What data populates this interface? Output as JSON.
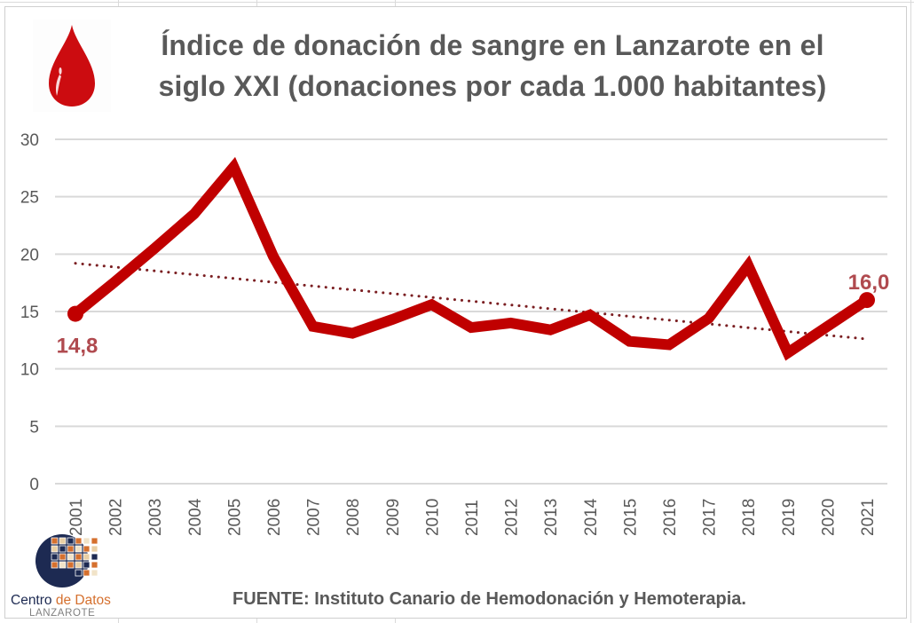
{
  "header": {
    "title": "Índice de donación de sangre en Lanzarote en el siglo XXI (donaciones por cada 1.000 habitantes)",
    "icon": "blood-drop-icon"
  },
  "footer": {
    "source": "FUENTE: Instituto Canario de Hemodonación y Hemoterapia.",
    "logo_name": "Centro",
    "logo_name_accent": "de Datos",
    "logo_subtitle": "LANZAROTE"
  },
  "colors": {
    "line": "#c00000",
    "trend": "#7b1f22",
    "label": "#b04a4f",
    "grid": "#d9d9d9",
    "text": "#595959"
  },
  "chart_data": {
    "type": "line",
    "title": "Índice de donación de sangre en Lanzarote en el siglo XXI (donaciones por cada 1.000 habitantes)",
    "xlabel": "",
    "ylabel": "",
    "ylim": [
      0,
      30
    ],
    "yticks": [
      "0",
      "5",
      "10",
      "15",
      "20",
      "25",
      "30"
    ],
    "ytick_values": [
      0,
      5,
      10,
      15,
      20,
      25,
      30
    ],
    "grid": true,
    "legend": "none",
    "categories": [
      "2001",
      "2002",
      "2003",
      "2004",
      "2005",
      "2006",
      "2007",
      "2008",
      "2009",
      "2010",
      "2011",
      "2012",
      "2013",
      "2014",
      "2015",
      "2016",
      "2017",
      "2018",
      "2019",
      "2020",
      "2021"
    ],
    "series": [
      {
        "name": "Donaciones por cada 1.000 habitantes",
        "values": [
          14.8,
          17.6,
          20.5,
          23.5,
          27.6,
          19.8,
          13.7,
          13.1,
          14.3,
          15.6,
          13.6,
          14.0,
          13.4,
          14.7,
          12.4,
          12.1,
          14.4,
          19.0,
          11.4,
          13.7,
          16.0
        ]
      }
    ],
    "trendline": {
      "type": "linear",
      "start": 19.2,
      "end": 12.6,
      "style": "dotted"
    },
    "annotations": [
      {
        "category": "2001",
        "value": 14.8,
        "text": "14,8",
        "position": "below"
      },
      {
        "category": "2021",
        "value": 16.0,
        "text": "16,0",
        "position": "above"
      }
    ]
  }
}
